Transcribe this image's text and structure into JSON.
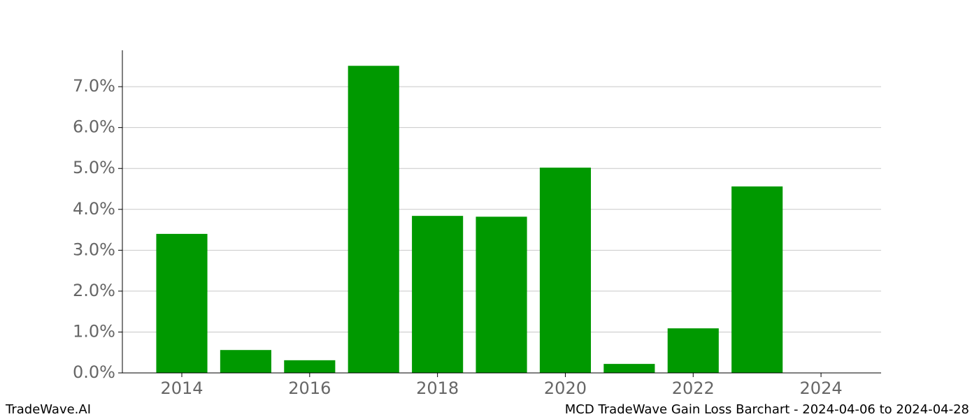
{
  "chart_data": {
    "type": "bar",
    "x": [
      2014,
      2015,
      2016,
      2017,
      2018,
      2019,
      2020,
      2021,
      2022,
      2023
    ],
    "values": [
      3.4,
      0.56,
      0.31,
      7.51,
      3.84,
      3.82,
      5.02,
      0.22,
      1.09,
      4.56
    ],
    "color": "#009900",
    "xlim": [
      2013.07,
      2024.94
    ],
    "xticks": [
      2014,
      2016,
      2018,
      2020,
      2022,
      2024
    ],
    "ylim": [
      0,
      7.89
    ],
    "yticks": [
      {
        "value": 0,
        "label": "0.0%"
      },
      {
        "value": 1,
        "label": "1.0%"
      },
      {
        "value": 2,
        "label": "2.0%"
      },
      {
        "value": 3,
        "label": "3.0%"
      },
      {
        "value": 4,
        "label": "4.0%"
      },
      {
        "value": 5,
        "label": "5.0%"
      },
      {
        "value": 6,
        "label": "6.0%"
      },
      {
        "value": 7,
        "label": "7.0%"
      }
    ],
    "grid": true,
    "footer_left": "TradeWave.AI",
    "footer_right": "MCD TradeWave Gain Loss Barchart - 2024-04-06 to 2024-04-28"
  }
}
